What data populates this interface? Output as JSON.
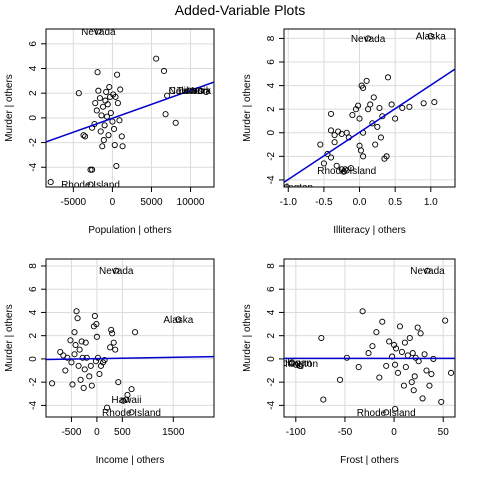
{
  "title": "Added-Variable Plots",
  "colors": {
    "fit_line": "#0000cc",
    "grid": "#dcdcdc",
    "points": "#000000"
  },
  "chart_data": [
    {
      "type": "scatter",
      "xlabel": "Population | others",
      "ylabel": "Murder | others",
      "xlim": [
        -8500,
        13000
      ],
      "ylim": [
        -5.6,
        7.2
      ],
      "xticks": [
        -5000,
        0,
        5000,
        10000
      ],
      "xtick_labels": [
        "-5000",
        "0",
        "5000",
        "10000"
      ],
      "yticks": [
        -4,
        -2,
        0,
        2,
        4,
        6
      ],
      "ytick_labels": [
        "-4",
        "-2",
        "0",
        "2",
        "4",
        "6"
      ],
      "grid": true,
      "fit_line": [
        [
          -8500,
          -1.95
        ],
        [
          13000,
          2.9
        ]
      ],
      "points": [
        [
          -7900,
          -5.2
        ],
        [
          -4300,
          2.0
        ],
        [
          -3700,
          -1.4
        ],
        [
          -3500,
          -1.5
        ],
        [
          -2600,
          -0.8
        ],
        [
          -2300,
          -0.5
        ],
        [
          -2200,
          1.2
        ],
        [
          -2000,
          0.6
        ],
        [
          -1900,
          3.7
        ],
        [
          -1800,
          2.2
        ],
        [
          -1600,
          1.6
        ],
        [
          -1500,
          -1.1
        ],
        [
          -1400,
          0.2
        ],
        [
          -1200,
          0.9
        ],
        [
          -1100,
          -1.8
        ],
        [
          -1000,
          -0.6
        ],
        [
          -900,
          1.4
        ],
        [
          -800,
          2.1
        ],
        [
          -700,
          0.1
        ],
        [
          -600,
          1.1
        ],
        [
          -500,
          -1.4
        ],
        [
          -400,
          2.5
        ],
        [
          -300,
          1.7
        ],
        [
          -200,
          0.4
        ],
        [
          0,
          -0.3
        ],
        [
          100,
          1.9
        ],
        [
          200,
          -0.9
        ],
        [
          300,
          -2.2
        ],
        [
          400,
          1.7
        ],
        [
          600,
          3.5
        ],
        [
          700,
          1.2
        ],
        [
          900,
          -0.2
        ],
        [
          1000,
          2.3
        ],
        [
          1200,
          -1.5
        ],
        [
          -1300,
          -2.3
        ],
        [
          -2800,
          -4.2
        ],
        [
          -2600,
          -4.2
        ],
        [
          1300,
          -2.3
        ],
        [
          500,
          -3.9
        ],
        [
          5600,
          4.8
        ],
        [
          6600,
          3.8
        ],
        [
          7000,
          1.8
        ],
        [
          8100,
          -0.4
        ],
        [
          6800,
          0.3
        ],
        [
          -1800,
          7.0
        ],
        [
          -2800,
          -5.4
        ],
        [
          9900,
          2.2
        ],
        [
          10400,
          2.2
        ],
        [
          11300,
          2.2
        ],
        [
          12000,
          2.1
        ]
      ],
      "labels": [
        {
          "text": "Nevada",
          "x": -1800,
          "y": 7.0
        },
        {
          "text": "New York",
          "x": 9900,
          "y": 2.2
        },
        {
          "text": "California",
          "x": 9900,
          "y": 2.2
        },
        {
          "text": "Texas",
          "x": 9900,
          "y": 2.2
        },
        {
          "text": "Rhode Island",
          "x": -2800,
          "y": -5.4
        }
      ]
    },
    {
      "type": "scatter",
      "xlabel": "Illiteracy | others",
      "ylabel": "Murder | others",
      "xlim": [
        -1.06,
        1.34
      ],
      "ylim": [
        -4.6,
        8.8
      ],
      "xticks": [
        -1.0,
        -0.5,
        0.0,
        0.5,
        1.0
      ],
      "xtick_labels": [
        "-1.0",
        "-0.5",
        "0.0",
        "0.5",
        "1.0"
      ],
      "yticks": [
        -4,
        -2,
        0,
        2,
        4,
        6,
        8
      ],
      "ytick_labels": [
        "-4",
        "-2",
        "0",
        "2",
        "4",
        "6",
        "8"
      ],
      "grid": true,
      "fit_line": [
        [
          -1.06,
          -4.2
        ],
        [
          1.34,
          5.4
        ]
      ],
      "points": [
        [
          -1.02,
          -4.6
        ],
        [
          -0.55,
          -1.0
        ],
        [
          -0.5,
          -2.6
        ],
        [
          -0.45,
          -1.8
        ],
        [
          -0.4,
          -2.1
        ],
        [
          -0.4,
          0.2
        ],
        [
          -0.35,
          -0.2
        ],
        [
          -0.32,
          -2.8
        ],
        [
          -0.3,
          0.1
        ],
        [
          -0.25,
          -3.1
        ],
        [
          -0.25,
          -0.1
        ],
        [
          -0.2,
          -3.1
        ],
        [
          -0.18,
          0.0
        ],
        [
          -0.15,
          -0.4
        ],
        [
          -0.12,
          -3.0
        ],
        [
          -0.1,
          1.5
        ],
        [
          -0.05,
          2.0
        ],
        [
          -0.02,
          2.3
        ],
        [
          0.0,
          -1.1
        ],
        [
          0.0,
          1.2
        ],
        [
          0.02,
          -1.5
        ],
        [
          0.05,
          -2.0
        ],
        [
          0.05,
          3.8
        ],
        [
          0.1,
          4.4
        ],
        [
          0.12,
          2.0
        ],
        [
          0.15,
          2.4
        ],
        [
          0.18,
          0.8
        ],
        [
          0.2,
          3.0
        ],
        [
          0.22,
          -1.0
        ],
        [
          0.25,
          0.5
        ],
        [
          0.28,
          2.1
        ],
        [
          0.3,
          -0.4
        ],
        [
          0.32,
          1.4
        ],
        [
          0.35,
          -2.2
        ],
        [
          0.38,
          -2.0
        ],
        [
          0.4,
          4.7
        ],
        [
          0.45,
          2.4
        ],
        [
          0.5,
          1.2
        ],
        [
          0.6,
          2.1
        ],
        [
          0.7,
          2.2
        ],
        [
          0.9,
          2.5
        ],
        [
          1.05,
          2.6
        ],
        [
          0.12,
          8.0
        ],
        [
          0.03,
          4.0
        ],
        [
          -0.4,
          1.6
        ],
        [
          -0.35,
          -0.8
        ],
        [
          0.05,
          0.0
        ],
        [
          1.0,
          8.2
        ],
        [
          -0.18,
          -3.2
        ],
        [
          -0.22,
          -3.3
        ]
      ],
      "labels": [
        {
          "text": "Nevada",
          "x": 0.12,
          "y": 8.0
        },
        {
          "text": "Alaska",
          "x": 1.0,
          "y": 8.2
        },
        {
          "text": "Rhode Island",
          "x": -0.18,
          "y": -3.2
        },
        {
          "text": "Washington",
          "x": -1.02,
          "y": -4.6
        }
      ]
    },
    {
      "type": "scatter",
      "xlabel": "Income | others",
      "ylabel": "Murder | others",
      "xlim": [
        -1000,
        2300
      ],
      "ylim": [
        -5.0,
        8.6
      ],
      "xticks": [
        -500,
        0,
        500,
        1500
      ],
      "xtick_labels": [
        "-500",
        "0",
        "500",
        "1500"
      ],
      "yticks": [
        -4,
        -2,
        0,
        2,
        4,
        6,
        8
      ],
      "ytick_labels": [
        "-4",
        "-2",
        "0",
        "2",
        "4",
        "6",
        "8"
      ],
      "grid": true,
      "fit_line": [
        [
          -1000,
          -0.05
        ],
        [
          2300,
          0.2
        ]
      ],
      "points": [
        [
          -880,
          -2.1
        ],
        [
          -720,
          0.6
        ],
        [
          -660,
          0.3
        ],
        [
          -620,
          -1.0
        ],
        [
          -580,
          0.1
        ],
        [
          -520,
          1.6
        ],
        [
          -500,
          -0.3
        ],
        [
          -480,
          -2.2
        ],
        [
          -440,
          2.3
        ],
        [
          -420,
          1.2
        ],
        [
          -400,
          4.1
        ],
        [
          -380,
          3.5
        ],
        [
          -360,
          -0.6
        ],
        [
          -340,
          0.8
        ],
        [
          -320,
          -1.8
        ],
        [
          -300,
          1.5
        ],
        [
          -280,
          0.1
        ],
        [
          -260,
          -2.5
        ],
        [
          -240,
          -0.9
        ],
        [
          -220,
          1.4
        ],
        [
          -200,
          0.1
        ],
        [
          -150,
          -1.5
        ],
        [
          -120,
          -0.6
        ],
        [
          -100,
          -2.3
        ],
        [
          -60,
          2.8
        ],
        [
          -40,
          3.7
        ],
        [
          -20,
          -0.2
        ],
        [
          0,
          1.9
        ],
        [
          20,
          0.1
        ],
        [
          50,
          -1.3
        ],
        [
          80,
          -0.6
        ],
        [
          120,
          -0.3
        ],
        [
          150,
          -0.1
        ],
        [
          200,
          -4.2
        ],
        [
          260,
          1.0
        ],
        [
          280,
          2.5
        ],
        [
          300,
          2.2
        ],
        [
          330,
          1.4
        ],
        [
          360,
          0.8
        ],
        [
          420,
          -2.0
        ],
        [
          520,
          -3.6
        ],
        [
          600,
          -3.1
        ],
        [
          680,
          -2.6
        ],
        [
          750,
          2.3
        ],
        [
          380,
          7.6
        ],
        [
          1600,
          3.4
        ],
        [
          580,
          -3.5
        ],
        [
          680,
          -4.6
        ],
        [
          -440,
          0.4
        ],
        [
          -10,
          3.0
        ]
      ],
      "labels": [
        {
          "text": "Nevada",
          "x": 380,
          "y": 7.6
        },
        {
          "text": "Alaska",
          "x": 1600,
          "y": 3.4
        },
        {
          "text": "Hawaii",
          "x": 580,
          "y": -3.5
        },
        {
          "text": "Rhode Island",
          "x": 680,
          "y": -4.6
        }
      ]
    },
    {
      "type": "scatter",
      "xlabel": "Frost | others",
      "ylabel": "Murder | others",
      "xlim": [
        -112,
        62
      ],
      "ylim": [
        -5.0,
        8.6
      ],
      "xticks": [
        -100,
        -50,
        0,
        50
      ],
      "xtick_labels": [
        "-100",
        "-50",
        "0",
        "50"
      ],
      "yticks": [
        -4,
        -2,
        0,
        2,
        4,
        6,
        8
      ],
      "ytick_labels": [
        "-4",
        "-2",
        "0",
        "2",
        "4",
        "6",
        "8"
      ],
      "grid": true,
      "fit_line": [
        [
          -112,
          0.05
        ],
        [
          62,
          0.05
        ]
      ],
      "points": [
        [
          -104,
          -0.3
        ],
        [
          -98,
          -0.4
        ],
        [
          -96,
          -0.6
        ],
        [
          -74,
          1.8
        ],
        [
          -72,
          -3.5
        ],
        [
          -55,
          -1.8
        ],
        [
          -48,
          0.1
        ],
        [
          -36,
          -0.7
        ],
        [
          -32,
          4.1
        ],
        [
          -26,
          0.5
        ],
        [
          -22,
          1.1
        ],
        [
          -18,
          2.3
        ],
        [
          -15,
          -1.6
        ],
        [
          -12,
          3.2
        ],
        [
          -8,
          -0.6
        ],
        [
          -5,
          1.5
        ],
        [
          -2,
          0.2
        ],
        [
          0,
          1.2
        ],
        [
          1,
          -0.5
        ],
        [
          2,
          0.9
        ],
        [
          4,
          -1.2
        ],
        [
          6,
          2.8
        ],
        [
          8,
          0.6
        ],
        [
          10,
          -2.3
        ],
        [
          11,
          1.4
        ],
        [
          12,
          -0.7
        ],
        [
          14,
          0.3
        ],
        [
          16,
          1.8
        ],
        [
          18,
          -2.0
        ],
        [
          19,
          0.5
        ],
        [
          20,
          -2.7
        ],
        [
          21,
          -1.5
        ],
        [
          22,
          0.1
        ],
        [
          24,
          2.7
        ],
        [
          25,
          -0.2
        ],
        [
          27,
          2.2
        ],
        [
          29,
          -3.4
        ],
        [
          31,
          0.4
        ],
        [
          33,
          -1.0
        ],
        [
          36,
          -2.3
        ],
        [
          38,
          -1.3
        ],
        [
          40,
          0.0
        ],
        [
          48,
          -3.7
        ],
        [
          52,
          3.3
        ],
        [
          58,
          -1.2
        ],
        [
          34,
          7.6
        ],
        [
          1,
          -4.3
        ],
        [
          -104,
          -0.4
        ],
        [
          -8,
          -4.6
        ],
        [
          -100,
          -0.5
        ]
      ],
      "labels": [
        {
          "text": "Nevada",
          "x": 34,
          "y": 7.6
        },
        {
          "text": "Michigan",
          "x": -104,
          "y": -0.3
        },
        {
          "text": "Washington",
          "x": -104,
          "y": -0.4
        },
        {
          "text": "Rhode Island",
          "x": -8,
          "y": -4.6
        }
      ]
    }
  ]
}
